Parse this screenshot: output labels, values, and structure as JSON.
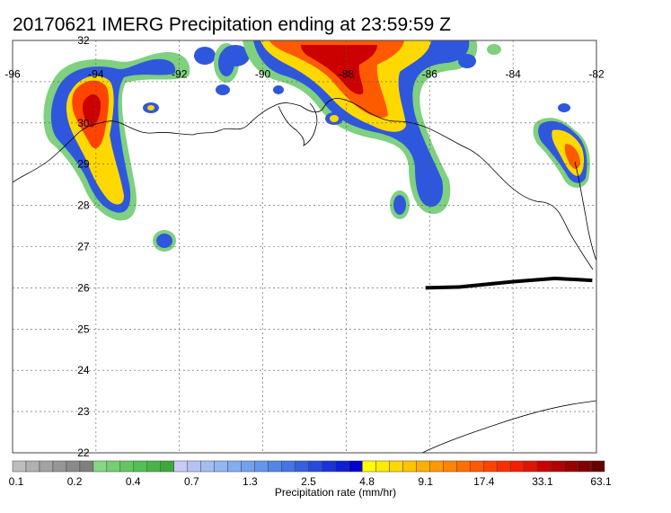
{
  "title": "20170621 IMERG Precipitation ending at 23:59:59 Z",
  "map": {
    "lon_range": [
      -96,
      -82
    ],
    "lat_range": [
      22,
      32
    ],
    "lon_ticks": [
      "-96",
      "-94",
      "-92",
      "-90",
      "-88",
      "-86",
      "-84",
      "-82"
    ],
    "lat_ticks": [
      "32",
      "30",
      "29",
      "28",
      "27",
      "26",
      "25",
      "24",
      "23",
      "22"
    ],
    "gridlines": true,
    "track": [
      [
        -86.1,
        26.0
      ],
      [
        -85.3,
        26.02
      ],
      [
        -84.0,
        26.15
      ],
      [
        -83.0,
        26.23
      ],
      [
        -82.1,
        26.18
      ]
    ]
  },
  "colorbar": {
    "title": "Precipitation rate (mm/hr)",
    "tick_labels": [
      "0.1",
      "0.2",
      "0.4",
      "0.7",
      "1.3",
      "2.5",
      "4.8",
      "9.1",
      "17.4",
      "33.1",
      "63.1"
    ],
    "colors": [
      "#bdbdbd",
      "#b0b0b0",
      "#a3a3a3",
      "#969696",
      "#8a8a8a",
      "#7f7f7f",
      "#86d786",
      "#72cf72",
      "#62c762",
      "#55bf55",
      "#48b448",
      "#3ca83c",
      "#c9c9f5",
      "#b5c3f3",
      "#a3bdf1",
      "#93b5f0",
      "#83adef",
      "#72a2ec",
      "#6395ea",
      "#5385e6",
      "#4475e2",
      "#3560de",
      "#274adc",
      "#1a33d8",
      "#0e1ed4",
      "#0000cf",
      "#ffff00",
      "#ffec00",
      "#ffd800",
      "#ffc400",
      "#ffae00",
      "#ff9900",
      "#ff8400",
      "#ff6f00",
      "#ff5a00",
      "#ff4400",
      "#ff2e00",
      "#f51e00",
      "#e01400",
      "#cc0000",
      "#b30000",
      "#9a0000",
      "#800000",
      "#660000"
    ],
    "colors_extra": [
      "#5a0000",
      "#4d0000",
      "#400000",
      "#360000",
      "#2e0000",
      "#260000",
      "#1e0000",
      "#160000",
      "#0e0000",
      "#060000"
    ]
  }
}
